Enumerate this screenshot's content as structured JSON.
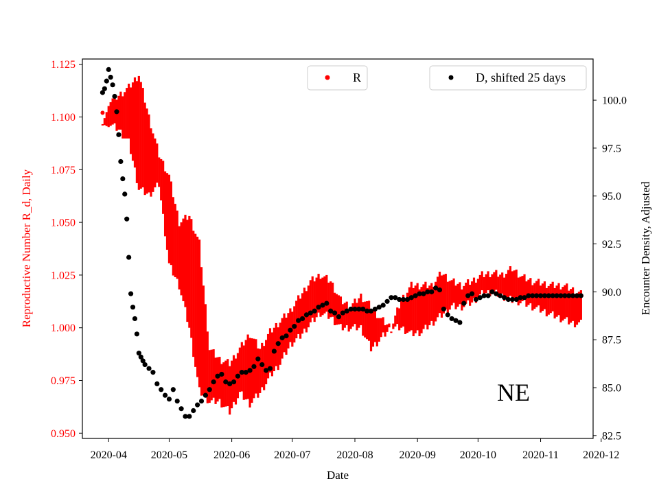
{
  "chart_data": {
    "type": "scatter",
    "title": "",
    "region_label": "NE",
    "xlabel": "Date",
    "ylabel_left": "Reproductive Number R_d, Daily",
    "ylabel_right": "Encounter Density, Adjusted",
    "x_ticks": [
      "2020-04",
      "2020-05",
      "2020-06",
      "2020-07",
      "2020-08",
      "2020-09",
      "2020-10",
      "2020-11",
      "2020-12"
    ],
    "x_tick_days": [
      0,
      30,
      61,
      91,
      122,
      153,
      183,
      214,
      244
    ],
    "x_range_days": [
      -13,
      240
    ],
    "ylim_left": [
      0.9475,
      1.1275
    ],
    "ylim_right": [
      82.35,
      102.15
    ],
    "y_ticks_left": [
      "0.950",
      "0.975",
      "1.000",
      "1.025",
      "1.050",
      "1.075",
      "1.100",
      "1.125"
    ],
    "y_ticks_right": [
      "82.5",
      "85.0",
      "87.5",
      "90.0",
      "92.5",
      "95.0",
      "97.5",
      "100.0"
    ],
    "left_axis_color": "#ff0000",
    "right_axis_color": "#000000",
    "legend": {
      "r_label": "R",
      "d_label": "D, shifted 25 days"
    },
    "series_R": {
      "name": "R",
      "color": "#ff0000",
      "note": "daily R values drawn as vertical bands [low, high]; day = days since 2020-04-01",
      "days": [
        -3,
        0,
        5,
        10,
        15,
        20,
        25,
        30,
        35,
        40,
        45,
        50,
        55,
        60,
        65,
        70,
        75,
        80,
        85,
        90,
        95,
        100,
        105,
        110,
        115,
        120,
        125,
        130,
        135,
        140,
        145,
        150,
        155,
        160,
        165,
        170,
        175,
        180,
        185,
        190,
        195,
        200,
        205,
        210,
        215,
        220,
        225,
        230,
        234
      ],
      "low": [
        1.102,
        1.097,
        1.094,
        1.088,
        1.066,
        1.063,
        1.068,
        1.03,
        1.02,
        1.0,
        0.97,
        0.965,
        0.965,
        0.96,
        0.969,
        0.964,
        0.969,
        0.977,
        0.983,
        0.992,
        0.996,
        1.002,
        1.007,
        1.005,
        1.0,
        1.0,
        1.0,
        0.99,
        0.995,
        1.0,
        1.0,
        0.997,
        0.998,
        1.002,
        1.006,
        1.01,
        1.01,
        1.012,
        1.016,
        1.017,
        1.015,
        1.013,
        1.012,
        1.01,
        1.008,
        1.006,
        1.004,
        1.002,
        1.002
      ],
      "high": [
        1.102,
        1.107,
        1.11,
        1.114,
        1.12,
        1.1,
        1.082,
        1.072,
        1.05,
        1.053,
        1.04,
        0.99,
        0.985,
        0.983,
        0.99,
        0.997,
        0.99,
        0.998,
        1.003,
        1.008,
        1.015,
        1.022,
        1.025,
        1.022,
        1.013,
        1.01,
        1.015,
        1.01,
        1.004,
        1.0,
        1.013,
        1.02,
        1.02,
        1.02,
        1.026,
        1.022,
        1.02,
        1.022,
        1.025,
        1.026,
        1.025,
        1.028,
        1.024,
        1.022,
        1.021,
        1.02,
        1.02,
        1.018,
        1.016
      ]
    },
    "series_D": {
      "name": "D, shifted 25 days",
      "color": "#000000",
      "note": "day = days since 2020-04-01",
      "days": [
        -3,
        -2,
        -1,
        0,
        1,
        2,
        3,
        4,
        5,
        6,
        7,
        8,
        9,
        10,
        11,
        12,
        13,
        14,
        15,
        16,
        17,
        18,
        20,
        22,
        24,
        26,
        28,
        30,
        32,
        34,
        36,
        38,
        40,
        42,
        44,
        46,
        48,
        50,
        52,
        54,
        56,
        58,
        60,
        62,
        64,
        66,
        68,
        70,
        72,
        74,
        76,
        78,
        80,
        82,
        84,
        86,
        88,
        90,
        92,
        94,
        96,
        98,
        100,
        102,
        104,
        106,
        108,
        110,
        112,
        114,
        116,
        118,
        120,
        122,
        124,
        126,
        128,
        130,
        132,
        134,
        136,
        138,
        140,
        142,
        144,
        146,
        148,
        150,
        152,
        154,
        156,
        158,
        160,
        162,
        164,
        166,
        168,
        170,
        172,
        174,
        176,
        178,
        180,
        182,
        184,
        186,
        188,
        190,
        192,
        194,
        196,
        198,
        200,
        202,
        204,
        206,
        208,
        210,
        212,
        214,
        216,
        218,
        220,
        222,
        224,
        226,
        228,
        230,
        232,
        234
      ],
      "values": [
        100.4,
        100.6,
        101.0,
        101.6,
        101.2,
        100.8,
        100.2,
        99.4,
        98.2,
        96.8,
        95.9,
        95.1,
        93.8,
        91.8,
        89.9,
        89.2,
        88.6,
        87.8,
        86.8,
        86.6,
        86.4,
        86.2,
        86.0,
        85.8,
        85.2,
        84.9,
        84.6,
        84.4,
        84.9,
        84.3,
        83.9,
        83.5,
        83.5,
        83.8,
        84.1,
        84.3,
        84.6,
        84.9,
        85.3,
        85.6,
        85.7,
        85.3,
        85.2,
        85.3,
        85.6,
        85.8,
        85.8,
        85.9,
        86.1,
        86.5,
        86.2,
        85.9,
        86.0,
        86.9,
        87.3,
        87.6,
        87.7,
        88.0,
        88.2,
        88.5,
        88.6,
        88.8,
        88.9,
        89.0,
        89.2,
        89.3,
        89.4,
        89.0,
        88.9,
        88.7,
        88.9,
        89.0,
        89.1,
        89.1,
        89.1,
        89.1,
        89.0,
        89.0,
        89.1,
        89.2,
        89.3,
        89.5,
        89.7,
        89.7,
        89.6,
        89.6,
        89.6,
        89.7,
        89.8,
        89.9,
        89.9,
        90.0,
        90.0,
        90.2,
        90.1,
        89.1,
        88.8,
        88.6,
        88.5,
        88.4,
        89.4,
        89.8,
        89.9,
        89.6,
        89.7,
        89.8,
        89.8,
        90.0,
        89.9,
        89.8,
        89.7,
        89.6,
        89.6,
        89.6,
        89.7,
        89.7,
        89.8,
        89.8,
        89.8,
        89.8,
        89.8,
        89.8,
        89.8,
        89.8,
        89.8,
        89.8,
        89.8,
        89.8,
        89.8,
        89.8
      ]
    }
  }
}
